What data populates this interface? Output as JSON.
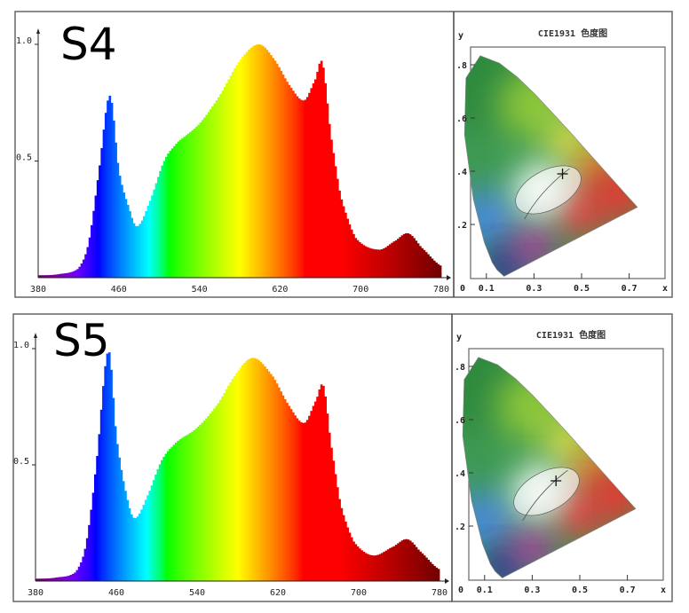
{
  "chart_data": [
    {
      "type": "area",
      "label": "S4",
      "x_ticks": [
        "380",
        "460",
        "540",
        "620",
        "700",
        "780"
      ],
      "y_ticks": [
        "0.5",
        "1.0"
      ],
      "xlim": [
        380,
        780
      ],
      "ylim": [
        0,
        1.05
      ],
      "grid": false,
      "x": [
        380,
        400,
        420,
        430,
        440,
        451,
        460,
        470,
        478,
        490,
        505,
        518,
        540,
        560,
        580,
        599,
        615,
        630,
        644,
        655,
        662,
        670,
        680,
        695,
        718,
        735,
        747,
        760,
        780
      ],
      "values": [
        0.01,
        0.015,
        0.04,
        0.15,
        0.45,
        0.78,
        0.46,
        0.3,
        0.22,
        0.32,
        0.5,
        0.58,
        0.66,
        0.78,
        0.93,
        1.0,
        0.93,
        0.82,
        0.76,
        0.85,
        0.92,
        0.62,
        0.35,
        0.17,
        0.12,
        0.16,
        0.19,
        0.13,
        0.05
      ]
    },
    {
      "type": "scatter",
      "title": "CIE1931 色度图",
      "xlabel": "x",
      "ylabel": "y",
      "x_ticks": [
        "0",
        "0.1",
        "0.3",
        "0.5",
        "0.7"
      ],
      "y_ticks": [
        ".2",
        ".4",
        ".6",
        ".8"
      ],
      "xlim": [
        0,
        0.8
      ],
      "ylim": [
        0,
        0.87
      ],
      "point": {
        "x": 0.42,
        "y": 0.39
      }
    },
    {
      "type": "area",
      "label": "S5",
      "x_ticks": [
        "380",
        "460",
        "540",
        "620",
        "700",
        "780"
      ],
      "y_ticks": [
        "0.5",
        "1.0"
      ],
      "xlim": [
        380,
        780
      ],
      "ylim": [
        0,
        1.05
      ],
      "grid": false,
      "x": [
        380,
        400,
        420,
        430,
        440,
        452,
        460,
        470,
        478,
        490,
        505,
        520,
        540,
        560,
        580,
        596,
        615,
        630,
        646,
        658,
        665,
        672,
        682,
        695,
        714,
        735,
        748,
        760,
        780
      ],
      "values": [
        0.01,
        0.015,
        0.04,
        0.16,
        0.5,
        0.99,
        0.62,
        0.37,
        0.27,
        0.36,
        0.52,
        0.6,
        0.66,
        0.76,
        0.9,
        0.96,
        0.88,
        0.76,
        0.68,
        0.78,
        0.84,
        0.6,
        0.33,
        0.17,
        0.11,
        0.15,
        0.18,
        0.13,
        0.05
      ]
    },
    {
      "type": "scatter",
      "title": "CIE1931 色度图",
      "xlabel": "x",
      "ylabel": "y",
      "x_ticks": [
        "0",
        "0.1",
        "0.3",
        "0.5",
        "0.7"
      ],
      "y_ticks": [
        ".2",
        ".4",
        ".6",
        ".8"
      ],
      "xlim": [
        0,
        0.8
      ],
      "ylim": [
        0,
        0.87
      ],
      "point": {
        "x": 0.4,
        "y": 0.37
      }
    }
  ]
}
